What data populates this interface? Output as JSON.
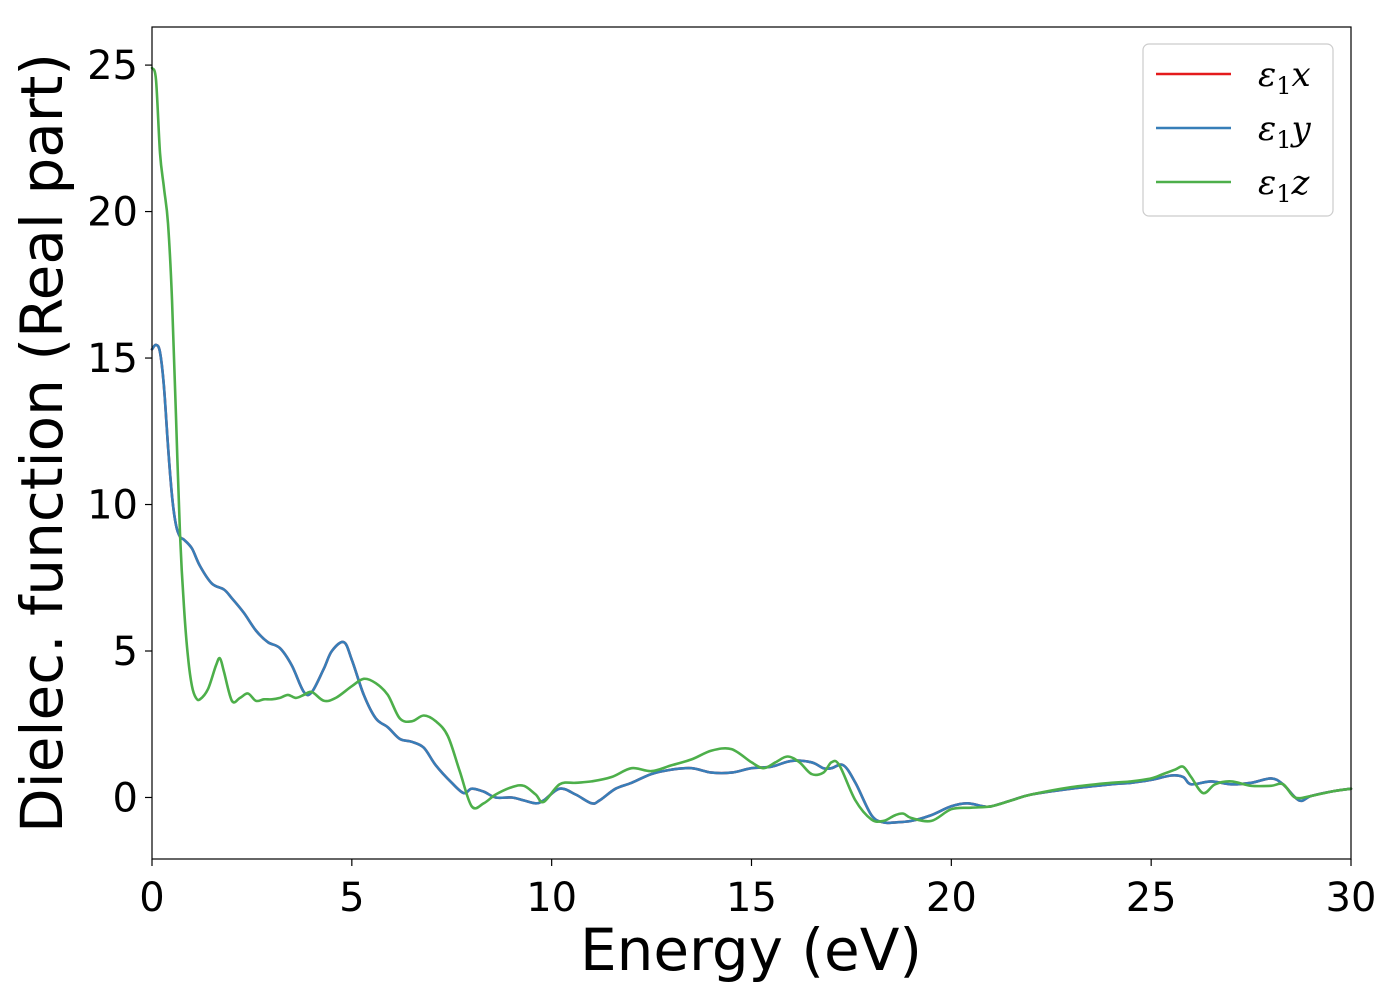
{
  "chart_data": {
    "type": "line",
    "title": "",
    "xlabel": "Energy (eV)",
    "ylabel": "Dielec. function (Real part)",
    "xlim": [
      0,
      30
    ],
    "ylim": [
      -2.1,
      26.3
    ],
    "xticks": [
      0,
      5,
      10,
      15,
      20,
      25,
      30
    ],
    "yticks": [
      0,
      5,
      10,
      15,
      20,
      25
    ],
    "grid": false,
    "legend_position": "top-right",
    "series": [
      {
        "name": "ε1x",
        "legend": {
          "symbol": "ε",
          "sub": "1",
          "axis": "x"
        },
        "color": "#e41a1c",
        "x": [
          0,
          0.1,
          0.2,
          0.3,
          0.4,
          0.5,
          0.6,
          0.7,
          0.8,
          1.0,
          1.2,
          1.5,
          1.8,
          2.0,
          2.3,
          2.6,
          2.9,
          3.2,
          3.5,
          3.8,
          4.0,
          4.3,
          4.5,
          4.8,
          5.0,
          5.3,
          5.6,
          5.9,
          6.2,
          6.5,
          6.8,
          7.1,
          7.5,
          7.8,
          8.0,
          8.3,
          8.6,
          9.0,
          9.3,
          9.6,
          9.8,
          10.2,
          10.6,
          11.0,
          11.2,
          11.6,
          12.0,
          12.5,
          13.0,
          13.5,
          14.0,
          14.5,
          15.0,
          15.5,
          16.0,
          16.5,
          16.8,
          17.0,
          17.3,
          17.6,
          18.0,
          18.3,
          18.6,
          19.0,
          19.5,
          20.0,
          20.4,
          20.8,
          21.0,
          21.5,
          22.0,
          23.0,
          24.0,
          24.5,
          25.0,
          25.5,
          25.8,
          26.0,
          26.5,
          27.0,
          27.5,
          28.0,
          28.3,
          28.7,
          29.0,
          29.5,
          30.0
        ],
        "y": [
          15.3,
          15.45,
          15.2,
          14.0,
          12.0,
          10.3,
          9.3,
          8.9,
          8.8,
          8.5,
          7.9,
          7.3,
          7.1,
          6.8,
          6.3,
          5.7,
          5.3,
          5.1,
          4.5,
          3.6,
          3.6,
          4.4,
          5.0,
          5.3,
          4.7,
          3.5,
          2.7,
          2.4,
          2.0,
          1.9,
          1.7,
          1.1,
          0.5,
          0.15,
          0.3,
          0.2,
          0.0,
          0.0,
          -0.1,
          -0.2,
          -0.1,
          0.3,
          0.1,
          -0.2,
          -0.1,
          0.3,
          0.5,
          0.8,
          0.95,
          1.0,
          0.85,
          0.85,
          1.0,
          1.05,
          1.25,
          1.2,
          1.0,
          1.0,
          1.1,
          0.5,
          -0.6,
          -0.85,
          -0.85,
          -0.8,
          -0.6,
          -0.3,
          -0.2,
          -0.3,
          -0.3,
          -0.1,
          0.1,
          0.3,
          0.45,
          0.5,
          0.6,
          0.75,
          0.7,
          0.45,
          0.55,
          0.45,
          0.5,
          0.65,
          0.45,
          -0.1,
          0.05,
          0.2,
          0.3
        ]
      },
      {
        "name": "ε1y",
        "legend": {
          "symbol": "ε",
          "sub": "1",
          "axis": "y"
        },
        "color": "#377eb8",
        "x": [
          0,
          0.1,
          0.2,
          0.3,
          0.4,
          0.5,
          0.6,
          0.7,
          0.8,
          1.0,
          1.2,
          1.5,
          1.8,
          2.0,
          2.3,
          2.6,
          2.9,
          3.2,
          3.5,
          3.8,
          4.0,
          4.3,
          4.5,
          4.8,
          5.0,
          5.3,
          5.6,
          5.9,
          6.2,
          6.5,
          6.8,
          7.1,
          7.5,
          7.8,
          8.0,
          8.3,
          8.6,
          9.0,
          9.3,
          9.6,
          9.8,
          10.2,
          10.6,
          11.0,
          11.2,
          11.6,
          12.0,
          12.5,
          13.0,
          13.5,
          14.0,
          14.5,
          15.0,
          15.5,
          16.0,
          16.5,
          16.8,
          17.0,
          17.3,
          17.6,
          18.0,
          18.3,
          18.6,
          19.0,
          19.5,
          20.0,
          20.4,
          20.8,
          21.0,
          21.5,
          22.0,
          23.0,
          24.0,
          24.5,
          25.0,
          25.5,
          25.8,
          26.0,
          26.5,
          27.0,
          27.5,
          28.0,
          28.3,
          28.7,
          29.0,
          29.5,
          30.0
        ],
        "y": [
          15.3,
          15.45,
          15.2,
          14.0,
          12.0,
          10.3,
          9.3,
          8.9,
          8.8,
          8.5,
          7.9,
          7.3,
          7.1,
          6.8,
          6.3,
          5.7,
          5.3,
          5.1,
          4.5,
          3.6,
          3.6,
          4.4,
          5.0,
          5.3,
          4.7,
          3.5,
          2.7,
          2.4,
          2.0,
          1.9,
          1.7,
          1.1,
          0.5,
          0.15,
          0.3,
          0.2,
          0.0,
          0.0,
          -0.1,
          -0.2,
          -0.1,
          0.3,
          0.1,
          -0.2,
          -0.1,
          0.3,
          0.5,
          0.8,
          0.95,
          1.0,
          0.85,
          0.85,
          1.0,
          1.05,
          1.25,
          1.2,
          1.0,
          1.0,
          1.1,
          0.5,
          -0.6,
          -0.85,
          -0.85,
          -0.8,
          -0.6,
          -0.3,
          -0.2,
          -0.3,
          -0.3,
          -0.1,
          0.1,
          0.3,
          0.45,
          0.5,
          0.6,
          0.75,
          0.7,
          0.45,
          0.55,
          0.45,
          0.5,
          0.65,
          0.45,
          -0.1,
          0.05,
          0.2,
          0.3
        ]
      },
      {
        "name": "ε1z",
        "legend": {
          "symbol": "ε",
          "sub": "1",
          "axis": "z"
        },
        "color": "#4daf4a",
        "x": [
          0,
          0.1,
          0.2,
          0.3,
          0.4,
          0.5,
          0.6,
          0.7,
          0.8,
          0.9,
          1.0,
          1.1,
          1.2,
          1.4,
          1.6,
          1.7,
          1.8,
          2.0,
          2.2,
          2.4,
          2.6,
          2.8,
          3.0,
          3.2,
          3.4,
          3.6,
          3.8,
          4.0,
          4.3,
          4.6,
          5.0,
          5.3,
          5.6,
          5.9,
          6.2,
          6.5,
          6.8,
          7.1,
          7.4,
          7.7,
          8.0,
          8.3,
          8.6,
          9.0,
          9.3,
          9.6,
          9.8,
          10.2,
          10.6,
          11.0,
          11.5,
          12.0,
          12.5,
          13.0,
          13.5,
          14.0,
          14.5,
          15.0,
          15.3,
          15.6,
          15.9,
          16.2,
          16.5,
          16.8,
          17.0,
          17.2,
          17.6,
          18.0,
          18.3,
          18.6,
          18.8,
          19.0,
          19.5,
          20.0,
          20.5,
          21.0,
          21.5,
          22.0,
          23.0,
          24.0,
          24.5,
          25.0,
          25.3,
          25.6,
          25.8,
          26.0,
          26.3,
          26.6,
          27.0,
          27.5,
          28.0,
          28.3,
          28.6,
          29.0,
          29.5,
          30.0
        ],
        "y": [
          24.9,
          24.5,
          22.0,
          20.8,
          19.6,
          17.0,
          13.0,
          9.0,
          6.5,
          4.8,
          3.8,
          3.4,
          3.35,
          3.7,
          4.5,
          4.75,
          4.3,
          3.3,
          3.4,
          3.55,
          3.3,
          3.35,
          3.35,
          3.4,
          3.5,
          3.4,
          3.5,
          3.6,
          3.3,
          3.4,
          3.8,
          4.05,
          3.9,
          3.5,
          2.7,
          2.6,
          2.8,
          2.6,
          2.1,
          0.9,
          -0.3,
          -0.2,
          0.1,
          0.35,
          0.4,
          0.1,
          -0.15,
          0.45,
          0.5,
          0.55,
          0.7,
          1.0,
          0.9,
          1.1,
          1.3,
          1.6,
          1.65,
          1.2,
          1.0,
          1.2,
          1.4,
          1.2,
          0.8,
          0.85,
          1.2,
          1.1,
          -0.1,
          -0.75,
          -0.8,
          -0.6,
          -0.55,
          -0.7,
          -0.8,
          -0.4,
          -0.35,
          -0.3,
          -0.1,
          0.1,
          0.35,
          0.5,
          0.55,
          0.65,
          0.8,
          0.95,
          1.05,
          0.7,
          0.15,
          0.45,
          0.55,
          0.4,
          0.4,
          0.45,
          0.0,
          0.05,
          0.2,
          0.3
        ]
      }
    ]
  }
}
